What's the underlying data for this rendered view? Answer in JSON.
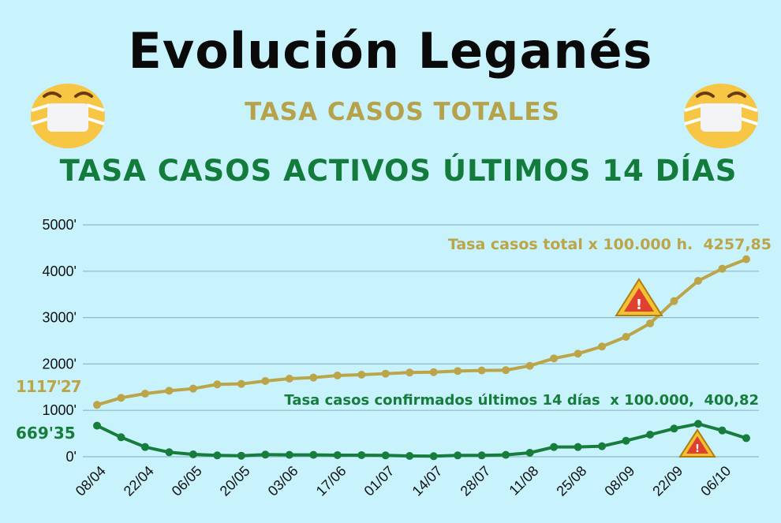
{
  "header": {
    "title": "Evolución Leganés",
    "subtitle_total": "TASA CASOS TOTALES",
    "subtitle_active": "TASA CASOS ACTIVOS ÚLTIMOS 14 DÍAS"
  },
  "icons": {
    "left": "face-with-medical-mask-icon",
    "right": "face-with-medical-mask-icon",
    "warning": "warning-triangle-icon"
  },
  "colors": {
    "background": "#c8f3fc",
    "total": "#bca548",
    "active": "#167d3d",
    "grid": "#8fb8c4"
  },
  "chart_data": {
    "type": "line",
    "title": "",
    "xlabel": "",
    "ylabel": "",
    "ylim": [
      0,
      5000
    ],
    "y_ticks": [
      "0'",
      "1000'",
      "2000'",
      "3000'",
      "4000'",
      "5000'"
    ],
    "y_tick_values": [
      0,
      1000,
      2000,
      3000,
      4000,
      5000
    ],
    "x_tick_labels": [
      "08/04",
      "22/04",
      "06/05",
      "20/05",
      "03/06",
      "17/06",
      "01/07",
      "14/07",
      "28/07",
      "11/08",
      "25/08",
      "08/09",
      "22/09",
      "06/10"
    ],
    "grid": true,
    "series": [
      {
        "name": "Tasa casos total x 100.000 h.  4257,85",
        "color": "#bca548",
        "start_label": "1117'27",
        "values": [
          1117.27,
          1270,
          1360,
          1423,
          1468,
          1560,
          1570,
          1633,
          1684,
          1706,
          1752,
          1769,
          1791,
          1815,
          1825,
          1848,
          1860,
          1866,
          1961,
          2120,
          2222,
          2376,
          2585,
          2874,
          3356,
          3793,
          4053,
          4257.85
        ]
      },
      {
        "name": "Tasa casos confirmados últimos 14 días  x 100.000,  400,82",
        "color": "#167d3d",
        "start_label": "669'35",
        "values": [
          669.35,
          420,
          210,
          97,
          51,
          29,
          22,
          46,
          40,
          40,
          35,
          35,
          29,
          17,
          12,
          29,
          29,
          40,
          85,
          210,
          210,
          227,
          345,
          476,
          607,
          709,
          567,
          400.82
        ]
      }
    ]
  }
}
